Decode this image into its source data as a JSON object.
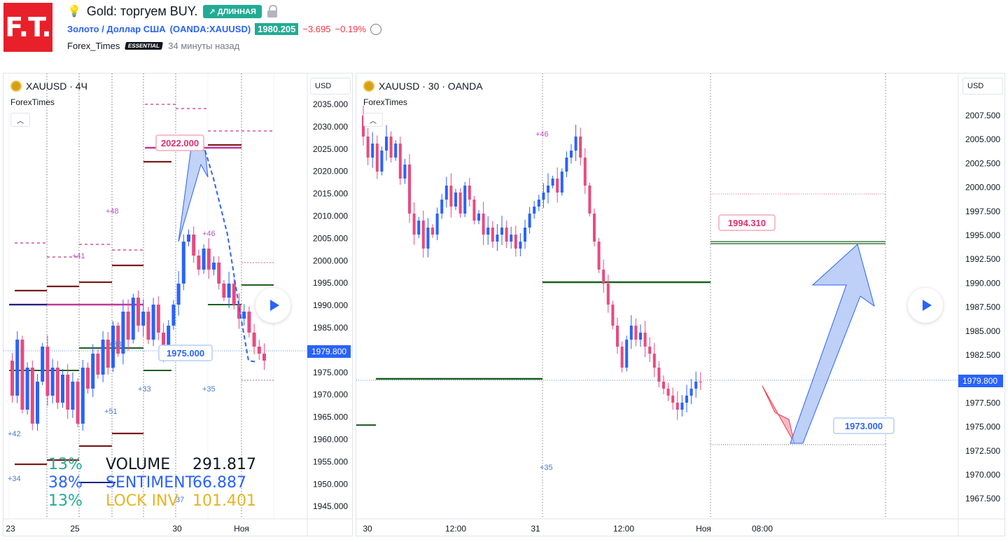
{
  "idea": {
    "logo_text": "F.T.",
    "title": "Gold: торгуем BUY.",
    "direction_badge": "↗ ДЛИННАЯ",
    "symbol_label": "Золото / Доллар США",
    "symbol_code": "(OANDA:XAUUSD)",
    "last_price": "1980.205",
    "change_abs": "−3.695",
    "change_pct": "−0.19%",
    "author": "Forex_Times",
    "author_badge": "ESSENTIAL",
    "published": "34 минуты назад"
  },
  "left_chart": {
    "legend": "XAUUSD · 4Ч",
    "indicator": "ForexTimes",
    "currency_button": "USD",
    "price_ticks": [
      "2035.000",
      "2030.000",
      "2025.000",
      "2020.000",
      "2015.000",
      "2010.000",
      "2005.000",
      "2000.000",
      "1995.000",
      "1990.000",
      "1985.000",
      "1980.000",
      "1975.000",
      "1970.000",
      "1965.000",
      "1960.000",
      "1955.000",
      "1950.000",
      "1945.000"
    ],
    "time_ticks": [
      "23",
      "25",
      "30",
      "Ноя"
    ],
    "current_price_label": "1979.800",
    "callouts": [
      "2022.000",
      "1975.000"
    ],
    "annotations": [
      "+48",
      "+41",
      "+46",
      "+38",
      "+33",
      "+35",
      "+51",
      "+42",
      "+34",
      "37"
    ],
    "stats": [
      {
        "pct": "13%",
        "label": "VOLUME",
        "value": "291.817"
      },
      {
        "pct": "38%",
        "label": "SENTIMENT",
        "value": "66.887"
      },
      {
        "pct": "13%",
        "label": "LOCK INV",
        "value": "101.401"
      }
    ]
  },
  "right_chart": {
    "legend": "XAUUSD · 30 · OANDA",
    "indicator": "ForexTimes",
    "currency_button": "USD",
    "price_ticks": [
      "2007.500",
      "2005.000",
      "2002.500",
      "2000.000",
      "1997.500",
      "1995.000",
      "1992.500",
      "1990.000",
      "1987.500",
      "1985.000",
      "1982.500",
      "1980.000",
      "1977.500",
      "1975.000",
      "1972.500",
      "1970.000",
      "1967.500"
    ],
    "time_ticks": [
      "30",
      "12:00",
      "31",
      "12:00",
      "Ноя",
      "08:00"
    ],
    "current_price_label": "1979.800",
    "callouts": [
      "1994.310",
      "1973.000"
    ],
    "annotations": [
      "+46",
      "+35"
    ]
  },
  "colors": {
    "up": "#2962ff",
    "down": "#e84a7f",
    "accent_green": "#22ab94",
    "loss": "#f23645",
    "level_green": "#1b5e20",
    "level_maroon": "#7b1a1a"
  }
}
